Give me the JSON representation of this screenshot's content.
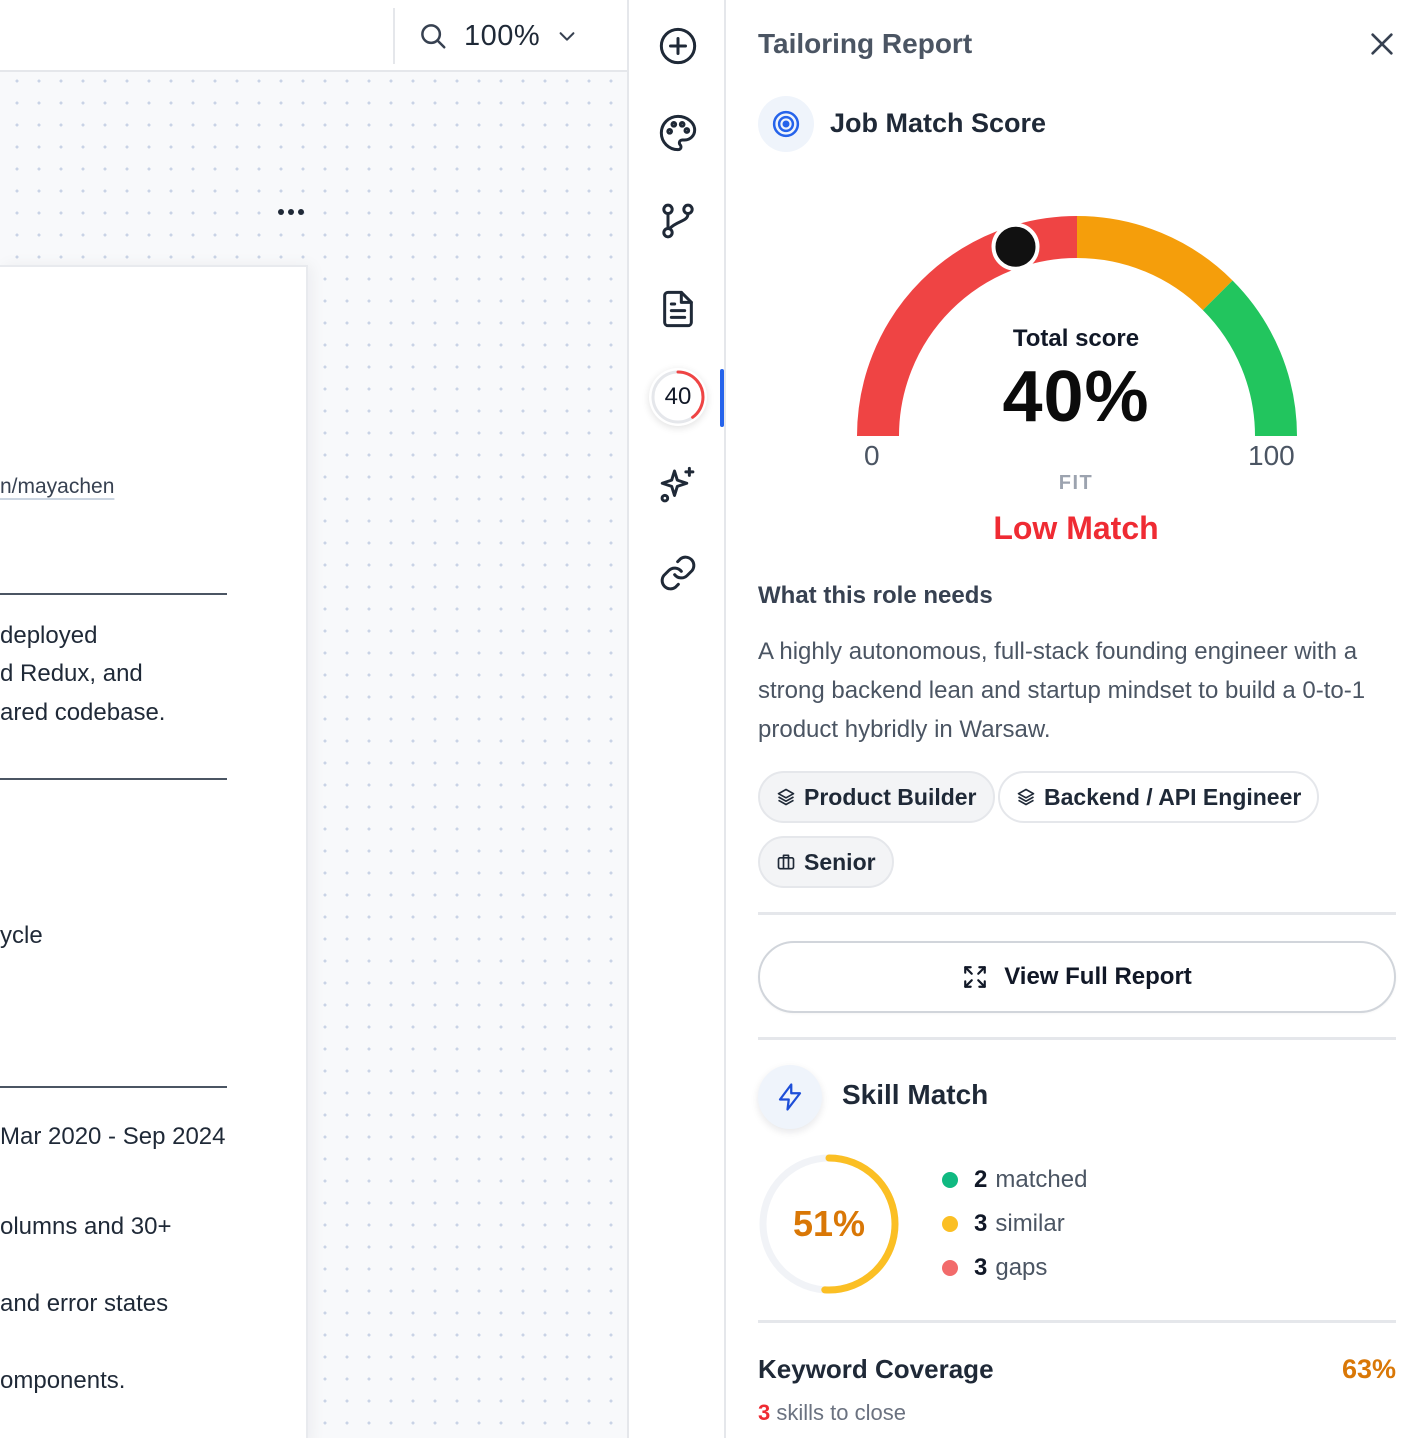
{
  "toolbar": {
    "zoom_value": "100%"
  },
  "document": {
    "lines": [
      "n/mayachen",
      "deployed",
      "d Redux, and",
      "ared codebase.",
      "ycle",
      "Mar 2020 - Sep 2024",
      "olumns and 30+",
      " and error states",
      "omponents."
    ]
  },
  "rail": {
    "icons": [
      "add-icon",
      "palette-icon",
      "branch-icon",
      "document-icon",
      "score-icon",
      "sparkle-icon",
      "link-icon"
    ],
    "score_badge": "40",
    "score_fraction": 0.4
  },
  "panel": {
    "title": "Tailoring Report",
    "job_match": {
      "heading": "Job Match Score",
      "total_label": "Total score",
      "total_value": "40%",
      "score": 40,
      "min": "0",
      "max": "100",
      "fit_label": "FIT",
      "match_label": "Low Match",
      "gauge_colors": {
        "low": "#ef4444",
        "mid": "#f59e0b",
        "high": "#22c55e"
      }
    },
    "role": {
      "heading": "What this role needs",
      "description": "A highly autonomous, full-stack founding engineer with a strong backend lean and startup mindset to build a 0-to-1 product hybridly in Warsaw.",
      "tags": [
        {
          "label": "Product Builder",
          "icon": "layers-icon"
        },
        {
          "label": "Backend / API Engineer",
          "icon": "layers-icon"
        },
        {
          "label": "Senior",
          "icon": "briefcase-icon"
        }
      ]
    },
    "view_full_report": "View Full Report",
    "skill_match": {
      "heading": "Skill Match",
      "percent": "51%",
      "fraction": 0.51,
      "matched_count": "2",
      "matched_label": "matched",
      "similar_count": "3",
      "similar_label": "similar",
      "gaps_count": "3",
      "gaps_label": "gaps",
      "colors": {
        "matched": "#10b981",
        "similar": "#fbbf24",
        "gaps": "#f26b6b"
      }
    },
    "keyword_coverage": {
      "heading": "Keyword Coverage",
      "percent": "63%",
      "skills_count": "3",
      "skills_text": " skills to close"
    }
  }
}
